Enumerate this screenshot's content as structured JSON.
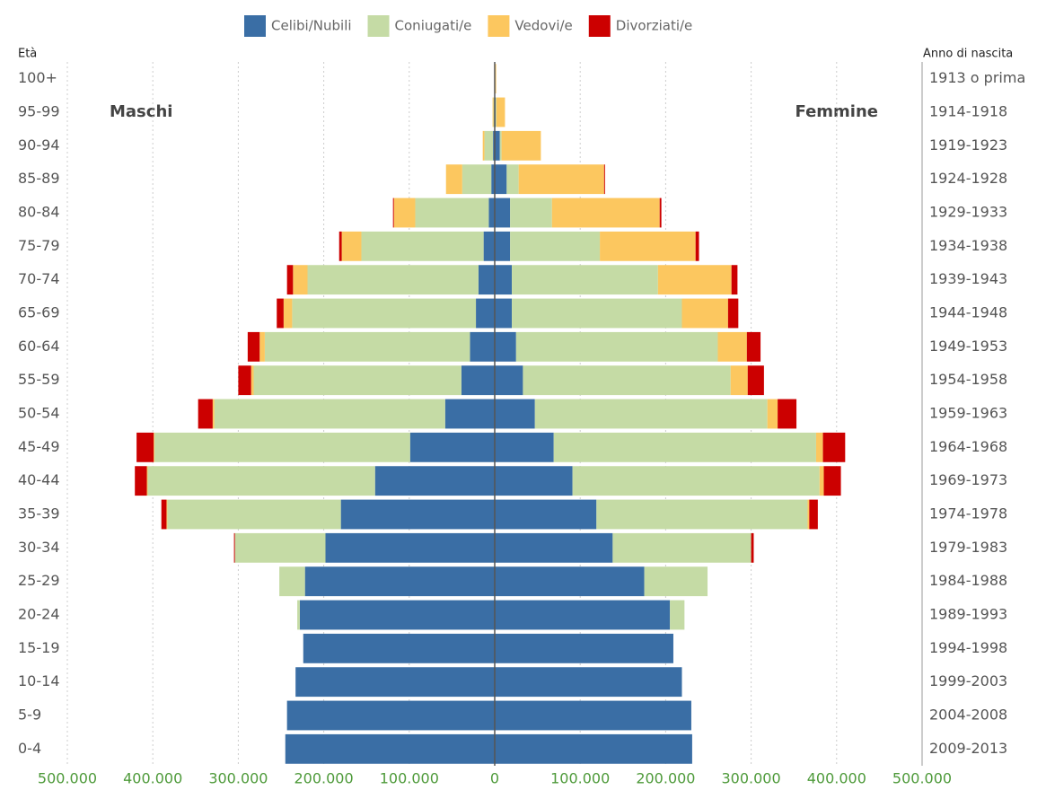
{
  "chart_data": {
    "type": "pyramid",
    "y_title": "Età",
    "y2_title": "Anno di nascita",
    "left_label": "Maschi",
    "right_label": "Femmine",
    "categories": [
      "0-4",
      "5-9",
      "10-14",
      "15-19",
      "20-24",
      "25-29",
      "30-34",
      "35-39",
      "40-44",
      "45-49",
      "50-54",
      "55-59",
      "60-64",
      "65-69",
      "70-74",
      "75-79",
      "80-84",
      "85-89",
      "90-94",
      "95-99",
      "100+"
    ],
    "birth_years": [
      "2009-2013",
      "2004-2008",
      "1999-2003",
      "1994-1998",
      "1989-1993",
      "1984-1988",
      "1979-1983",
      "1974-1978",
      "1969-1973",
      "1964-1968",
      "1959-1963",
      "1954-1958",
      "1949-1953",
      "1944-1948",
      "1939-1943",
      "1934-1938",
      "1929-1933",
      "1924-1928",
      "1919-1923",
      "1914-1918",
      "1913 o prima"
    ],
    "series": [
      {
        "name": "Celibi/Nubili",
        "color": "#3a6ea5",
        "male": [
          245000,
          243000,
          233000,
          224000,
          228000,
          222000,
          198000,
          180000,
          140000,
          99000,
          58000,
          39000,
          29000,
          22000,
          19000,
          13000,
          7000,
          4000,
          2000,
          500,
          200
        ],
        "female": [
          231000,
          230000,
          219000,
          209000,
          205000,
          175000,
          138000,
          119000,
          91000,
          69000,
          47000,
          33000,
          25000,
          20000,
          20000,
          18000,
          18000,
          14000,
          6000,
          1000,
          500
        ]
      },
      {
        "name": "Coniugati/e",
        "color": "#c5dba5",
        "male": [
          0,
          0,
          0,
          0,
          3000,
          30000,
          106000,
          203000,
          266000,
          299000,
          270000,
          243000,
          240000,
          215000,
          200000,
          143000,
          86000,
          34000,
          10000,
          1000,
          200
        ],
        "female": [
          0,
          0,
          0,
          0,
          17000,
          74000,
          162000,
          247000,
          289000,
          307000,
          272000,
          243000,
          236000,
          199000,
          171000,
          105000,
          49000,
          14000,
          2000,
          1000,
          200
        ]
      },
      {
        "name": "Vedovi/e",
        "color": "#fcc75f",
        "male": [
          0,
          0,
          0,
          0,
          0,
          0,
          0,
          1000,
          1000,
          1000,
          2000,
          3000,
          6000,
          10000,
          17000,
          23000,
          25000,
          19000,
          2000,
          1000,
          200
        ],
        "female": [
          0,
          0,
          0,
          0,
          0,
          0,
          0,
          2000,
          5000,
          8000,
          12000,
          20000,
          34000,
          54000,
          86000,
          112000,
          126000,
          100000,
          46000,
          10000,
          1000
        ]
      },
      {
        "name": "Divorziati/e",
        "color": "#cc0000",
        "male": [
          0,
          0,
          0,
          0,
          0,
          0,
          1000,
          6000,
          14000,
          20000,
          17000,
          15000,
          14000,
          8000,
          7000,
          3000,
          1000,
          0,
          0,
          0,
          0
        ],
        "female": [
          0,
          0,
          0,
          0,
          0,
          0,
          3000,
          10000,
          20000,
          26000,
          22000,
          19000,
          16000,
          12000,
          7000,
          4000,
          2000,
          1000,
          0,
          0,
          0
        ]
      }
    ],
    "xlim": [
      -500000,
      500000
    ],
    "xticks": [
      {
        "value": -500000,
        "label": "500.000"
      },
      {
        "value": -400000,
        "label": "400.000"
      },
      {
        "value": -300000,
        "label": "300.000"
      },
      {
        "value": -200000,
        "label": "200.000"
      },
      {
        "value": -100000,
        "label": "100.000"
      },
      0,
      {
        "value": 100000,
        "label": "100.000"
      },
      {
        "value": 200000,
        "label": "200.000"
      },
      {
        "value": 300000,
        "label": "300.000"
      },
      {
        "value": 400000,
        "label": "400.000"
      },
      {
        "value": 500000,
        "label": "500.000"
      }
    ],
    "grid": true
  }
}
